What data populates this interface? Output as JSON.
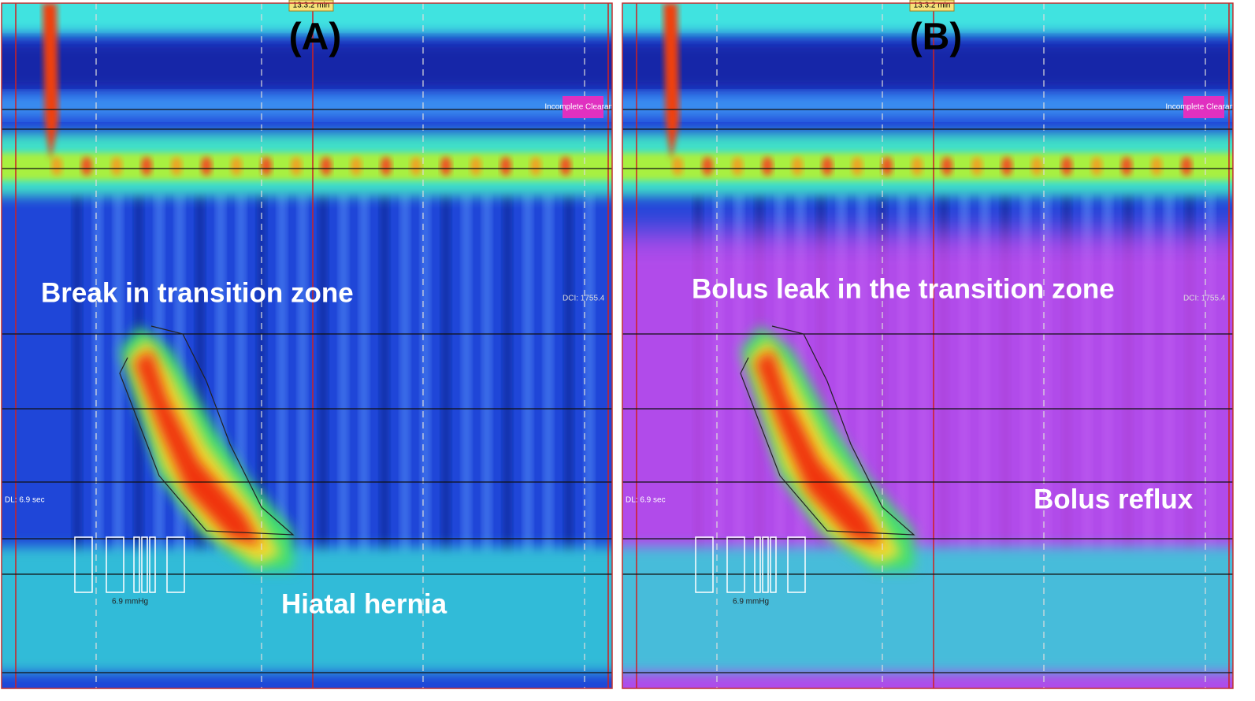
{
  "panels": [
    {
      "label": "(A)",
      "time_marker": "13:3.2 min",
      "badge": "Incomplete Clearance",
      "dci": "DCI: 1755.4",
      "dl": "DL: 6.9 sec",
      "irp": "6.9 mmHg",
      "annotations": [
        "Break in transition zone",
        "Hiatal hernia"
      ]
    },
    {
      "label": "(B)",
      "time_marker": "13:3.2 min",
      "badge": "Incomplete Clearance",
      "dci": "DCI: 1755.4",
      "dl": "DL: 6.9 sec",
      "irp": "6.9 mmHg",
      "annotations": [
        "Bolus leak in the transition zone",
        "Bolus reflux"
      ]
    }
  ]
}
